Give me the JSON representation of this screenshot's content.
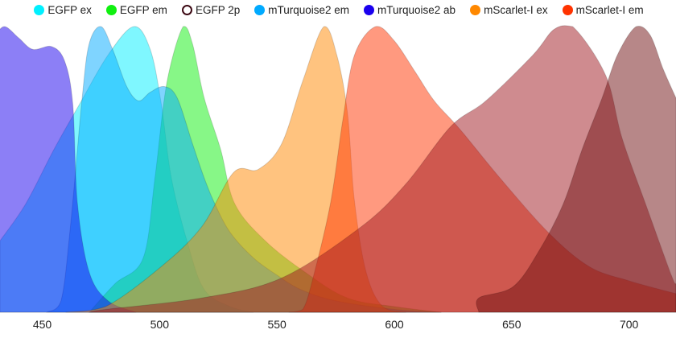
{
  "chart_data": {
    "type": "area",
    "title": "",
    "xlabel": "",
    "ylabel": "",
    "xlim": [
      432,
      720
    ],
    "ylim": [
      0,
      1
    ],
    "xticks": [
      450,
      500,
      550,
      600,
      650,
      700
    ],
    "grid": false,
    "legend_position": "top",
    "series": [
      {
        "name": "EGFP ex",
        "color": "#00f0ff",
        "visible": true,
        "points": [
          [
            432,
            0.25
          ],
          [
            443,
            0.38
          ],
          [
            455,
            0.57
          ],
          [
            466,
            0.73
          ],
          [
            478,
            0.9
          ],
          [
            489,
            1.0
          ],
          [
            496,
            0.92
          ],
          [
            500.7,
            0.73
          ],
          [
            505,
            0.47
          ],
          [
            512,
            0.24
          ],
          [
            519,
            0.08
          ],
          [
            530,
            0.02
          ],
          [
            540,
            0
          ]
        ]
      },
      {
        "name": "EGFP em",
        "color": "#10f010",
        "visible": true,
        "points": [
          [
            470,
            0
          ],
          [
            481,
            0.1
          ],
          [
            493,
            0.19
          ],
          [
            498,
            0.47
          ],
          [
            503,
            0.8
          ],
          [
            510,
            1.0
          ],
          [
            514,
            0.94
          ],
          [
            519,
            0.75
          ],
          [
            526,
            0.57
          ],
          [
            532,
            0.38
          ],
          [
            545,
            0.25
          ],
          [
            562,
            0.14
          ],
          [
            580,
            0.05
          ],
          [
            600,
            0.02
          ],
          [
            620,
            0
          ]
        ]
      },
      {
        "name": "EGFP 2p",
        "color": "#3d0a14",
        "visible": false,
        "points": []
      },
      {
        "name": "mTurquoise2 em",
        "color": "#00aaff",
        "visible": true,
        "points": [
          [
            452,
            0
          ],
          [
            458,
            0.04
          ],
          [
            462,
            0.3
          ],
          [
            467,
            0.75
          ],
          [
            470,
            0.94
          ],
          [
            475,
            1.0
          ],
          [
            480,
            0.92
          ],
          [
            486,
            0.79
          ],
          [
            491,
            0.74
          ],
          [
            496,
            0.77
          ],
          [
            502,
            0.79
          ],
          [
            507.5,
            0.75
          ],
          [
            514,
            0.59
          ],
          [
            519,
            0.47
          ],
          [
            523.5,
            0.38
          ],
          [
            530,
            0.28
          ],
          [
            540,
            0.19
          ],
          [
            550,
            0.13
          ],
          [
            560,
            0.08
          ],
          [
            575,
            0.04
          ],
          [
            600,
            0.01
          ],
          [
            620,
            0
          ]
        ]
      },
      {
        "name": "mTurquoise2 ab",
        "color": "#1a00ee",
        "visible": true,
        "points": [
          [
            430,
            0.97
          ],
          [
            434,
            1.0
          ],
          [
            440,
            0.96
          ],
          [
            446,
            0.92
          ],
          [
            454,
            0.93
          ],
          [
            459.5,
            0.88
          ],
          [
            463,
            0.73
          ],
          [
            465,
            0.38
          ],
          [
            470,
            0.14
          ],
          [
            478,
            0.04
          ],
          [
            490,
            0
          ]
        ]
      },
      {
        "name": "mScarlet-I ex",
        "color": "#ff8800",
        "visible": true,
        "points": [
          [
            460,
            0
          ],
          [
            477,
            0.02
          ],
          [
            500.7,
            0.16
          ],
          [
            518,
            0.3
          ],
          [
            531.6,
            0.49
          ],
          [
            542,
            0.5
          ],
          [
            552,
            0.59
          ],
          [
            561,
            0.81
          ],
          [
            570,
            1.0
          ],
          [
            575.5,
            0.9
          ],
          [
            580,
            0.7
          ],
          [
            583,
            0.39
          ],
          [
            588,
            0.14
          ],
          [
            595,
            0.02
          ],
          [
            605,
            0
          ]
        ]
      },
      {
        "name": "mScarlet-I em",
        "color": "#ff3300",
        "visible": true,
        "points": [
          [
            555,
            0
          ],
          [
            561,
            0.01
          ],
          [
            566,
            0.14
          ],
          [
            573,
            0.39
          ],
          [
            578,
            0.67
          ],
          [
            583,
            0.9
          ],
          [
            592,
            1.0
          ],
          [
            600,
            0.95
          ],
          [
            609,
            0.84
          ],
          [
            617,
            0.74
          ],
          [
            628,
            0.64
          ],
          [
            645,
            0.47
          ],
          [
            665.5,
            0.28
          ],
          [
            683,
            0.16
          ],
          [
            700,
            0.11
          ],
          [
            720,
            0.065
          ]
        ]
      },
      {
        "color": "#a01820",
        "visible": true,
        "points": [
          [
            470,
            0
          ],
          [
            477,
            0.01
          ],
          [
            518,
            0.05
          ],
          [
            552,
            0.12
          ],
          [
            586,
            0.3
          ],
          [
            605,
            0.45
          ],
          [
            624,
            0.65
          ],
          [
            639,
            0.74
          ],
          [
            659,
            0.9
          ],
          [
            668,
            0.99
          ],
          [
            676,
            1.0
          ],
          [
            690,
            0.83
          ],
          [
            697,
            0.61
          ],
          [
            707,
            0.38
          ],
          [
            718,
            0.13
          ],
          [
            720,
            0.1
          ]
        ]
      },
      {
        "color": "#701012",
        "visible": true,
        "points": [
          [
            636,
            0
          ],
          [
            636,
            0.05
          ],
          [
            650.7,
            0.09
          ],
          [
            662,
            0.22
          ],
          [
            672,
            0.38
          ],
          [
            680,
            0.57
          ],
          [
            688.5,
            0.75
          ],
          [
            695,
            0.9
          ],
          [
            703,
            1.0
          ],
          [
            709,
            0.97
          ],
          [
            714.6,
            0.85
          ],
          [
            720,
            0.75
          ]
        ]
      }
    ]
  }
}
